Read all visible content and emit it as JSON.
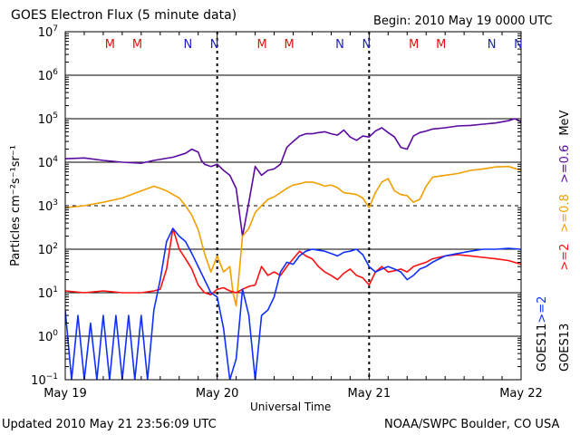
{
  "header": {
    "title": "GOES Electron Flux (5 minute data)",
    "begin": "Begin: 2010 May 19 0000 UTC"
  },
  "footer": {
    "updated": "Updated 2010 May 21 23:56:09 UTC",
    "credit": "NOAA/SWPC Boulder, CO USA"
  },
  "colors": {
    "goes13_06": "#5a0aa0",
    "goes13_08": "#f0a000",
    "goes11_2": "#1030ff",
    "goes13_2": "#ff1010",
    "marker_m": "#e01010",
    "marker_n": "#2020c0"
  },
  "chart_data": {
    "type": "line",
    "title": "GOES Electron Flux (5 minute data)",
    "xlabel": "Universal Time",
    "ylabel": "Particles cm⁻²s⁻¹sr⁻¹",
    "yscale": "log",
    "ylim": [
      0.1,
      10000000
    ],
    "xlim": [
      0,
      72
    ],
    "x_units": "hours since 2010 May 19 0000 UTC",
    "x_ticks": [
      {
        "x": 0,
        "label": "May 19"
      },
      {
        "x": 24,
        "label": "May 20"
      },
      {
        "x": 48,
        "label": "May 21"
      },
      {
        "x": 72,
        "label": "May 22"
      }
    ],
    "y_ticks": [
      {
        "exp": -1,
        "base": "10",
        "sup": "−1"
      },
      {
        "exp": 0,
        "base": "10",
        "sup": "0"
      },
      {
        "exp": 1,
        "base": "10",
        "sup": "1"
      },
      {
        "exp": 2,
        "base": "10",
        "sup": "2"
      },
      {
        "exp": 3,
        "base": "10",
        "sup": "3"
      },
      {
        "exp": 4,
        "base": "10",
        "sup": "4"
      },
      {
        "exp": 5,
        "base": "10",
        "sup": "5"
      },
      {
        "exp": 6,
        "base": "10",
        "sup": "6"
      },
      {
        "exp": 7,
        "base": "10",
        "sup": "7"
      }
    ],
    "markers": [
      {
        "x": 7.5,
        "label": "M"
      },
      {
        "x": 11.8,
        "label": "M"
      },
      {
        "x": 19.8,
        "label": "N"
      },
      {
        "x": 24.0,
        "label": "N"
      },
      {
        "x": 31.5,
        "label": "M"
      },
      {
        "x": 35.8,
        "label": "M"
      },
      {
        "x": 43.8,
        "label": "N"
      },
      {
        "x": 48.0,
        "label": "N"
      },
      {
        "x": 55.5,
        "label": "M"
      },
      {
        "x": 59.8,
        "label": "M"
      },
      {
        "x": 67.8,
        "label": "N"
      },
      {
        "x": 72.0,
        "label": "N"
      }
    ],
    "legend": [
      {
        "sat": "GOES11",
        "items": [
          {
            "text": ">=2",
            "color": "#1030ff"
          }
        ]
      },
      {
        "sat": "GOES13",
        "items": [
          {
            "text": ">=2",
            "color": "#ff1010"
          },
          {
            "text": ">=0.8",
            "color": "#f0a000"
          },
          {
            "text": ">=0.6",
            "color": "#5a0aa0"
          }
        ]
      }
    ],
    "legend_unit": "MeV",
    "series": [
      {
        "name": "GOES13 >=0.6 MeV",
        "color": "#5a0aa0",
        "x": [
          0,
          3,
          6,
          9,
          12,
          14,
          17,
          19,
          20,
          21,
          21.5,
          22,
          23,
          24,
          25,
          26,
          27,
          28,
          29,
          30,
          31,
          32,
          33,
          34,
          35,
          36,
          37,
          38,
          39,
          40,
          41,
          42,
          43,
          44,
          45,
          46,
          47,
          48,
          49,
          50,
          51,
          52,
          53,
          54,
          55,
          56,
          57,
          58,
          60,
          62,
          64,
          66,
          68,
          70,
          71,
          72
        ],
        "y": [
          12000,
          12500,
          11000,
          10000,
          9500,
          11000,
          13000,
          16000,
          20000,
          17000,
          11000,
          9000,
          8000,
          9000,
          6500,
          5000,
          2500,
          200,
          1200,
          8000,
          5000,
          6500,
          7000,
          9000,
          22000,
          30000,
          40000,
          45000,
          45000,
          48000,
          50000,
          45000,
          42000,
          55000,
          38000,
          32000,
          40000,
          38000,
          52000,
          62000,
          48000,
          38000,
          22000,
          20000,
          40000,
          48000,
          52000,
          58000,
          62000,
          68000,
          70000,
          75000,
          80000,
          90000,
          100000,
          85000
        ]
      },
      {
        "name": "GOES13 >=0.8 MeV",
        "color": "#f0a000",
        "x": [
          0,
          3,
          6,
          9,
          12,
          14,
          15,
          16,
          17,
          18,
          19,
          20,
          21,
          22,
          23,
          24,
          25,
          26,
          26.5,
          27,
          28,
          29,
          30,
          31,
          32,
          33,
          34,
          35,
          36,
          37,
          38,
          39,
          40,
          41,
          42,
          43,
          44,
          45,
          46,
          47,
          48,
          49,
          50,
          51,
          52,
          53,
          54,
          55,
          56,
          57,
          58,
          60,
          62,
          64,
          66,
          68,
          70,
          72
        ],
        "y": [
          900,
          1000,
          1200,
          1500,
          2200,
          2800,
          2500,
          2200,
          1800,
          1500,
          1000,
          600,
          280,
          80,
          30,
          70,
          30,
          40,
          10,
          5,
          200,
          300,
          700,
          1000,
          1400,
          1600,
          2000,
          2500,
          3000,
          3200,
          3500,
          3500,
          3200,
          2800,
          3000,
          2600,
          2000,
          1900,
          1800,
          1500,
          900,
          2000,
          3500,
          4200,
          2200,
          1800,
          1700,
          1200,
          1400,
          2800,
          4500,
          5000,
          5500,
          6500,
          7000,
          7800,
          8000,
          6500
        ]
      },
      {
        "name": "GOES13 >=2 MeV",
        "color": "#ff1010",
        "x": [
          0,
          3,
          6,
          9,
          12,
          14,
          15,
          16,
          17,
          18,
          19,
          20,
          21,
          22,
          23,
          24,
          25,
          26,
          27,
          28,
          29,
          30,
          31,
          32,
          33,
          34,
          35,
          36,
          37,
          38,
          39,
          40,
          41,
          42,
          43,
          44,
          45,
          46,
          47,
          48,
          49,
          50,
          51,
          52,
          53,
          54,
          55,
          56,
          57,
          58,
          60,
          62,
          64,
          66,
          68,
          70,
          72
        ],
        "y": [
          11,
          10,
          11,
          10,
          10,
          11,
          12,
          35,
          300,
          100,
          60,
          35,
          15,
          10,
          9,
          12,
          13,
          11,
          10,
          12,
          14,
          15,
          40,
          25,
          30,
          25,
          40,
          60,
          90,
          70,
          60,
          40,
          30,
          25,
          20,
          28,
          35,
          25,
          22,
          15,
          30,
          40,
          30,
          32,
          35,
          30,
          40,
          45,
          50,
          60,
          70,
          75,
          70,
          65,
          60,
          55,
          45
        ]
      },
      {
        "name": "GOES11 >=2 MeV",
        "color": "#1030ff",
        "x": [
          0,
          1,
          2,
          3,
          4,
          5,
          6,
          7,
          8,
          9,
          10,
          11,
          12,
          13,
          14,
          15,
          16,
          17,
          18,
          19,
          20,
          21,
          22,
          23,
          24,
          25,
          26,
          27,
          28,
          29,
          30,
          31,
          32,
          33,
          34,
          35,
          36,
          37,
          38,
          39,
          40,
          41,
          42,
          43,
          44,
          45,
          46,
          47,
          48,
          49,
          50,
          51,
          52,
          53,
          54,
          55,
          56,
          57,
          58,
          60,
          62,
          64,
          66,
          68,
          70,
          72
        ],
        "y": [
          4,
          0.1,
          3,
          0.1,
          2,
          0.1,
          3,
          0.1,
          3,
          0.1,
          3,
          0.1,
          3,
          0.1,
          4,
          20,
          150,
          300,
          200,
          150,
          80,
          40,
          20,
          10,
          8,
          1.5,
          0.1,
          0.3,
          12,
          3,
          0.1,
          3,
          4,
          8,
          30,
          50,
          45,
          70,
          90,
          100,
          95,
          90,
          80,
          70,
          85,
          90,
          100,
          75,
          40,
          30,
          35,
          40,
          35,
          30,
          20,
          25,
          35,
          40,
          50,
          70,
          80,
          90,
          100,
          100,
          105,
          100
        ]
      }
    ]
  }
}
